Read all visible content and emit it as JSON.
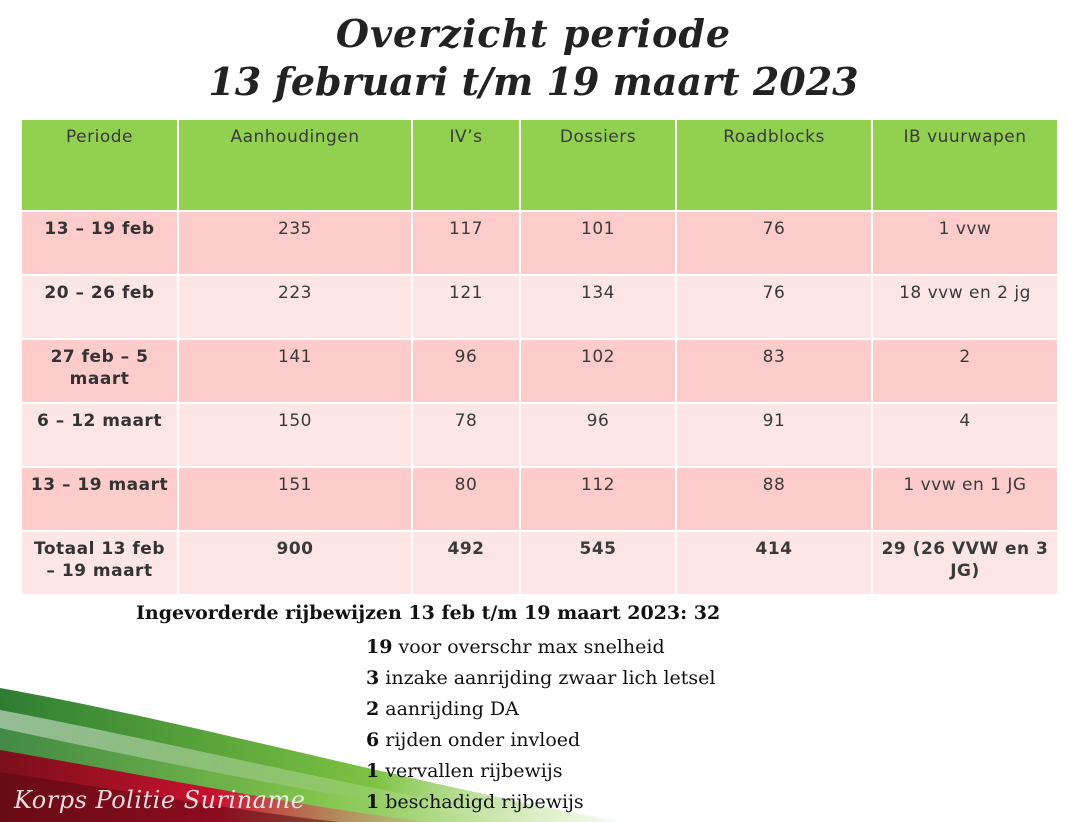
{
  "title": {
    "line1": "Overzicht periode",
    "line2": "13 februari t/m 19 maart 2023"
  },
  "table": {
    "headers": [
      "Periode",
      "Aanhoudingen",
      "IV’s",
      "Dossiers",
      "Roadblocks",
      "IB vuurwapen"
    ],
    "rows": [
      [
        "13 – 19 feb",
        "235",
        "117",
        "101",
        "76",
        "1 vvw"
      ],
      [
        "20 – 26 feb",
        "223",
        "121",
        "134",
        "76",
        "18 vvw en 2 jg"
      ],
      [
        "27 feb – 5 maart",
        "141",
        "96",
        "102",
        "83",
        "2"
      ],
      [
        "6 – 12 maart",
        "150",
        "78",
        "96",
        "91",
        "4"
      ],
      [
        "13 – 19 maart",
        "151",
        "80",
        "112",
        "88",
        "1 vvw en 1 JG"
      ],
      [
        "Totaal 13 feb – 19 maart",
        "900",
        "492",
        "545",
        "414",
        "29 (26 VVW en 3 JG)"
      ]
    ]
  },
  "summary": {
    "heading": "Ingevorderde rijbewijzen 13 feb t/m 19 maart 2023:  32",
    "items": [
      {
        "count": "19",
        "text": " voor overschr max snelheid"
      },
      {
        "count": "3",
        "text": " inzake aanrijding zwaar lich letsel"
      },
      {
        "count": "2",
        "text": " aanrijding DA"
      },
      {
        "count": "6",
        "text": " rijden onder invloed"
      },
      {
        "count": "1",
        "text": " vervallen rijbewijs"
      },
      {
        "count": "1",
        "text": " beschadigd rijbewijs"
      }
    ]
  },
  "brand": {
    "name": "Korps Politie Suriname",
    "colors": {
      "green": "#3fa33a",
      "red": "#c8102e",
      "header": "#92d050",
      "row_dark": "#ffcccc",
      "row_light": "#ffe6e6"
    }
  }
}
